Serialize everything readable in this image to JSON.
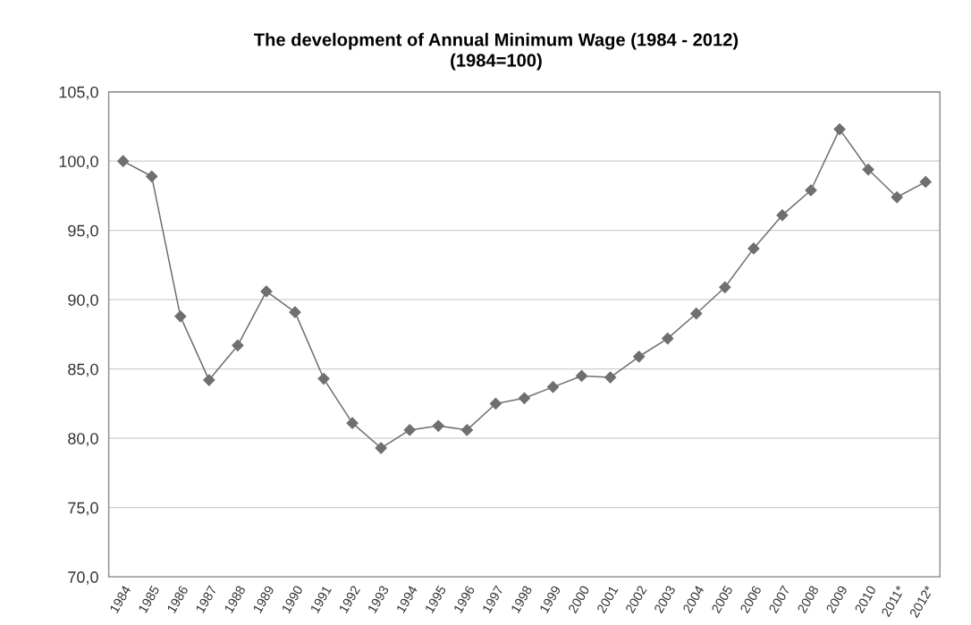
{
  "chart_data": {
    "type": "line",
    "title": "The development of Annual Minimum Wage (1984 - 2012)",
    "subtitle": "(1984=100)",
    "categories": [
      "1984",
      "1985",
      "1986",
      "1987",
      "1988",
      "1989",
      "1990",
      "1991",
      "1992",
      "1993",
      "1994",
      "1995",
      "1996",
      "1997",
      "1998",
      "1999",
      "2000",
      "2001",
      "2002",
      "2003",
      "2004",
      "2005",
      "2006",
      "2007",
      "2008",
      "2009",
      "2010",
      "2011*",
      "2012*"
    ],
    "series": [
      {
        "color": "#6f6f6f",
        "values": [
          100.0,
          98.9,
          88.8,
          84.2,
          86.7,
          90.6,
          89.1,
          84.3,
          81.1,
          79.3,
          80.6,
          80.9,
          80.6,
          82.5,
          82.9,
          83.7,
          84.5,
          84.4,
          85.9,
          87.2,
          89.0,
          90.9,
          93.7,
          96.1,
          97.9,
          102.3,
          99.4,
          97.4,
          98.5
        ]
      }
    ],
    "ylim": [
      70,
      105
    ],
    "yticks": [
      {
        "value": 70,
        "label": "70,0"
      },
      {
        "value": 75,
        "label": "75,0"
      },
      {
        "value": 80,
        "label": "80,0"
      },
      {
        "value": 85,
        "label": "85,0"
      },
      {
        "value": 90,
        "label": "90,0"
      },
      {
        "value": 95,
        "label": "95,0"
      },
      {
        "value": 100,
        "label": "100,0"
      },
      {
        "value": 105,
        "label": "105,0"
      }
    ],
    "grid": "y",
    "marker": "diamond",
    "line_style": "solid"
  }
}
